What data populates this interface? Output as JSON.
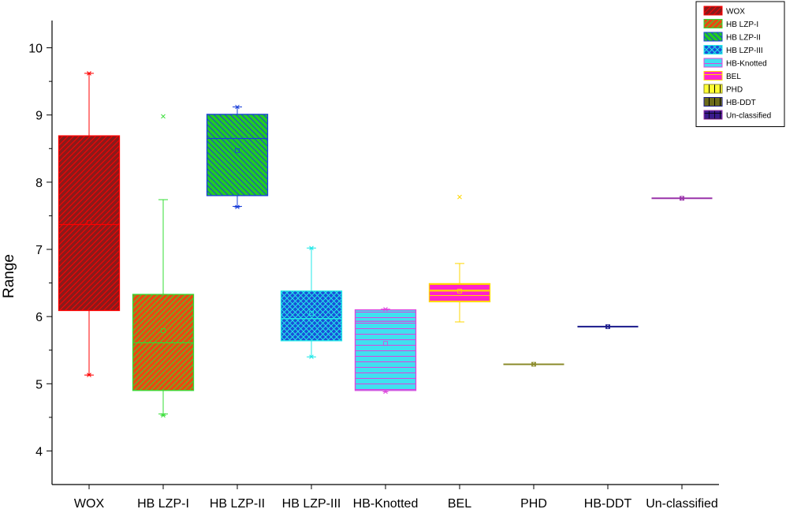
{
  "chart_data": {
    "type": "box",
    "ylabel": "Range",
    "xlabel": "",
    "ylim": [
      3.5,
      10.5
    ],
    "yticks": [
      4,
      5,
      6,
      7,
      8,
      9,
      10
    ],
    "grid": false,
    "legend_position": "top-right",
    "categories": [
      "WOX",
      "HB LZP-I",
      "HB LZP-II",
      "HB LZP-III",
      "HB-Knotted",
      "BEL",
      "PHD",
      "HB-DDT",
      "Un-classified"
    ],
    "series": [
      {
        "name": "WOX",
        "color": "#ff0000",
        "fill": "#8b1a1a",
        "pattern": "diag-left",
        "whisker_low": 5.13,
        "q1": 6.09,
        "median": 7.37,
        "q3": 8.69,
        "whisker_high": 9.62,
        "mean": 7.4,
        "min": 5.13,
        "max": 9.62,
        "outliers": []
      },
      {
        "name": "HB LZP-I",
        "color": "#33dd33",
        "fill": "#e84a10",
        "pattern": "diag-left",
        "whisker_low": 4.55,
        "q1": 4.9,
        "median": 5.61,
        "q3": 6.33,
        "whisker_high": 7.74,
        "mean": 5.79,
        "min": 4.53,
        "max": null,
        "outliers": [
          8.98
        ]
      },
      {
        "name": "HB LZP-II",
        "color": "#1a3fd9",
        "fill": "#22cc22",
        "pattern": "diag-right",
        "whisker_low": 7.64,
        "q1": 7.8,
        "median": 8.65,
        "q3": 9.01,
        "whisker_high": 9.12,
        "mean": 8.47,
        "min": 7.63,
        "max": 9.12,
        "outliers": []
      },
      {
        "name": "HB LZP-III",
        "color": "#22e8e8",
        "fill": "#1a4fd9",
        "pattern": "cross",
        "whisker_low": 5.4,
        "q1": 5.64,
        "median": 5.97,
        "q3": 6.38,
        "whisker_high": 7.02,
        "mean": 6.05,
        "min": 5.4,
        "max": 7.02,
        "outliers": []
      },
      {
        "name": "HB-Knotted",
        "color": "#dd44dd",
        "fill": "#40e0f0",
        "pattern": "horizontal",
        "whisker_low": 4.9,
        "q1": 4.9,
        "median": 5.93,
        "q3": 6.1,
        "whisker_high": 6.11,
        "mean": 5.6,
        "min": 4.88,
        "max": 6.11,
        "outliers": []
      },
      {
        "name": "BEL",
        "color": "#ffd700",
        "fill": "#ff22cc",
        "pattern": "horizontal",
        "whisker_low": 5.92,
        "q1": 6.22,
        "median": 6.38,
        "q3": 6.49,
        "whisker_high": 6.79,
        "mean": 6.38,
        "min": null,
        "max": null,
        "outliers": [
          7.78
        ]
      },
      {
        "name": "PHD",
        "color": "#8b8b2a",
        "fill": "#ffff33",
        "pattern": "vertical",
        "whisker_low": 5.29,
        "q1": 5.29,
        "median": 5.29,
        "q3": 5.29,
        "whisker_high": 5.29,
        "mean": 5.29,
        "min": 5.29,
        "max": 5.29,
        "outliers": []
      },
      {
        "name": "HB-DDT",
        "color": "#1a1a8b",
        "fill": "#6b6b1a",
        "pattern": "vertical",
        "whisker_low": 5.85,
        "q1": 5.85,
        "median": 5.85,
        "q3": 5.85,
        "whisker_high": 5.85,
        "mean": 5.85,
        "min": 5.85,
        "max": 5.85,
        "outliers": []
      },
      {
        "name": "Un-classified",
        "color": "#9933aa",
        "fill": "#3a1a8b",
        "pattern": "grid",
        "whisker_low": 7.76,
        "q1": 7.76,
        "median": 7.76,
        "q3": 7.76,
        "whisker_high": 7.76,
        "mean": 7.76,
        "min": 7.76,
        "max": 7.76,
        "outliers": []
      }
    ]
  }
}
